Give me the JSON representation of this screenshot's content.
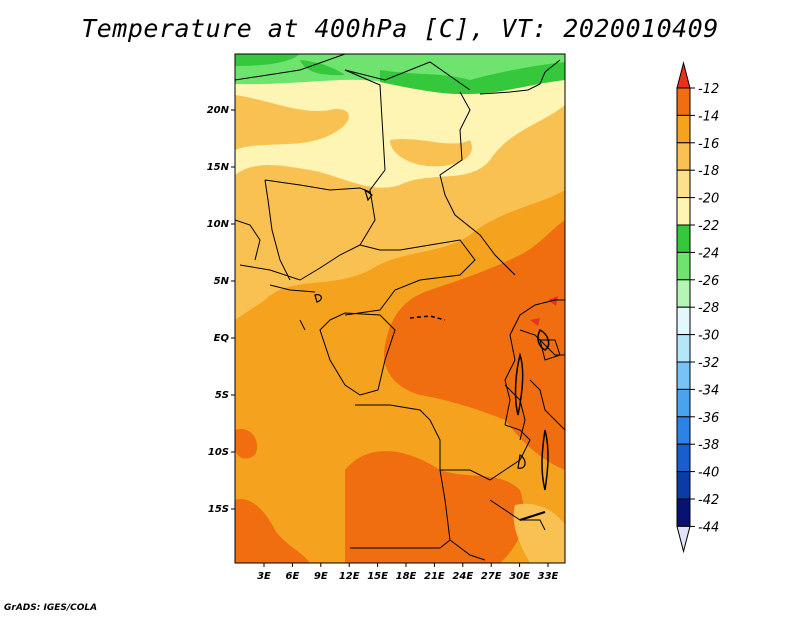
{
  "title": "Temperature at 400hPa [C], VT: 2020010409",
  "footer": "GrADS: IGES/COLA",
  "map": {
    "variable": "Temperature",
    "level": "400hPa",
    "units": "C",
    "valid_time": "2020010409",
    "lat_labels": [
      "20N",
      "15N",
      "10N",
      "5N",
      "EQ",
      "5S",
      "10S",
      "15S"
    ],
    "lon_labels": [
      "3E",
      "6E",
      "9E",
      "12E",
      "15E",
      "18E",
      "21E",
      "24E",
      "27E",
      "30E",
      "33E"
    ]
  },
  "colorbar": {
    "labels": [
      "-12",
      "-14",
      "-16",
      "-18",
      "-20",
      "-22",
      "-24",
      "-26",
      "-28",
      "-30",
      "-32",
      "-34",
      "-36",
      "-38",
      "-40",
      "-42",
      "-44"
    ],
    "colors": [
      "#e8321e",
      "#f06e0f",
      "#f5a31e",
      "#f9c052",
      "#fde08c",
      "#fef5b4",
      "#35c73c",
      "#6ee36e",
      "#b5f5b4",
      "#e2f8fc",
      "#b4e6fa",
      "#78c2f5",
      "#4aa3ef",
      "#2d82e6",
      "#1a5ecd",
      "#0d3ba5",
      "#081270",
      "#e2e2f8"
    ]
  },
  "regions": [
    {
      "name": "green-band-north",
      "color": "#35c73c"
    },
    {
      "name": "light-green-band",
      "color": "#6ee36e"
    },
    {
      "name": "pale-yellow-sahara",
      "color": "#fef5b4"
    },
    {
      "name": "light-orange-belt",
      "color": "#f9c052"
    },
    {
      "name": "orange-central",
      "color": "#f5a31e"
    },
    {
      "name": "deep-orange-congo",
      "color": "#f06e0f"
    },
    {
      "name": "red-hotspot",
      "color": "#e8321e"
    }
  ]
}
